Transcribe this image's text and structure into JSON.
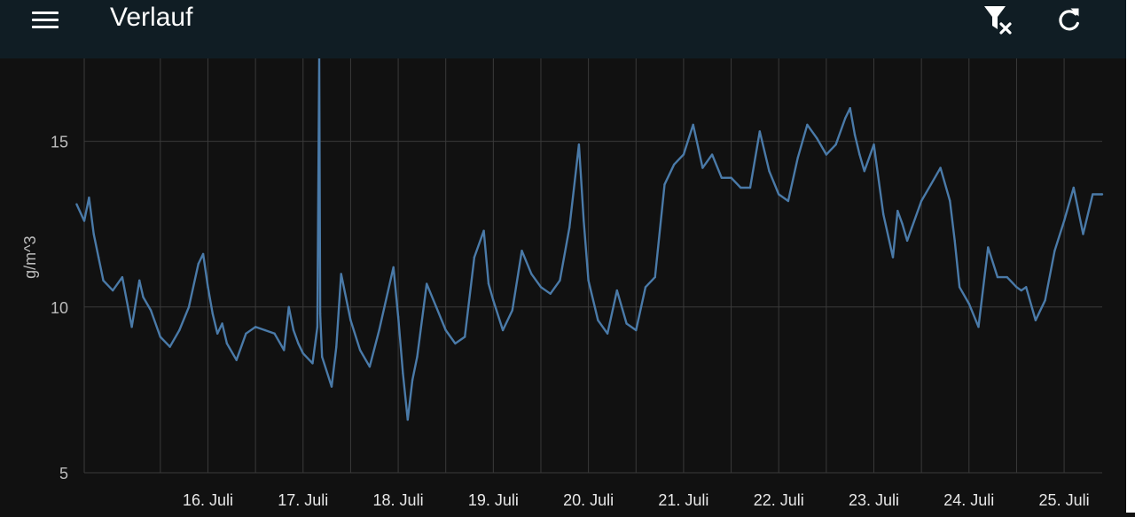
{
  "app_bar": {
    "title": "Verlauf",
    "menu_icon": "menu-icon",
    "actions": [
      {
        "icon": "filter-remove-icon"
      },
      {
        "icon": "refresh-icon"
      }
    ],
    "background": "#101d24"
  },
  "chart_data": {
    "type": "line",
    "ylabel": "g/m^3",
    "ylim": [
      5,
      17.5
    ],
    "yticks": [
      5,
      10,
      15
    ],
    "x_unit": "day",
    "x_tick_labels": [
      "16. Juli",
      "17. Juli",
      "18. Juli",
      "19. Juli",
      "20. Juli",
      "21. Juli",
      "22. Juli",
      "23. Juli",
      "24. Juli",
      "25. Juli"
    ],
    "xlim": [
      15.2,
      25.9
    ],
    "grid": true,
    "series": [
      {
        "color": "#4a7aa8",
        "x": [
          15.12,
          15.2,
          15.25,
          15.3,
          15.35,
          15.4,
          15.5,
          15.6,
          15.7,
          15.78,
          15.82,
          15.9,
          16.0,
          16.1,
          16.2,
          16.3,
          16.4,
          16.45,
          16.5,
          16.55,
          16.6,
          16.65,
          16.7,
          16.8,
          16.9,
          17.0,
          17.1,
          17.2,
          17.3,
          17.35,
          17.4,
          17.45,
          17.5,
          17.6,
          17.65,
          17.67,
          17.68,
          17.7,
          17.8,
          17.85,
          17.9,
          18.0,
          18.1,
          18.2,
          18.3,
          18.45,
          18.5,
          18.55,
          18.6,
          18.65,
          18.7,
          18.8,
          18.9,
          19.0,
          19.1,
          19.2,
          19.3,
          19.4,
          19.45,
          19.5,
          19.6,
          19.7,
          19.8,
          19.9,
          20.0,
          20.1,
          20.2,
          20.3,
          20.4,
          20.45,
          20.5,
          20.6,
          20.7,
          20.8,
          20.9,
          21.0,
          21.1,
          21.2,
          21.3,
          21.4,
          21.5,
          21.6,
          21.7,
          21.8,
          21.9,
          22.0,
          22.1,
          22.2,
          22.3,
          22.4,
          22.5,
          22.6,
          22.7,
          22.8,
          22.9,
          23.0,
          23.1,
          23.2,
          23.25,
          23.3,
          23.35,
          23.4,
          23.5,
          23.6,
          23.7,
          23.75,
          23.8,
          23.85,
          23.9,
          24.0,
          24.1,
          24.2,
          24.3,
          24.35,
          24.4,
          24.5,
          24.6,
          24.7,
          24.8,
          24.9,
          25.0,
          25.05,
          25.1,
          25.2,
          25.3,
          25.4,
          25.5,
          25.6,
          25.7,
          25.8,
          25.9
        ],
        "y": [
          13.1,
          12.6,
          13.3,
          12.2,
          11.5,
          10.8,
          10.5,
          10.9,
          9.4,
          10.8,
          10.3,
          9.9,
          9.1,
          8.8,
          9.3,
          10.0,
          11.3,
          11.6,
          10.6,
          9.8,
          9.2,
          9.5,
          8.9,
          8.4,
          9.2,
          9.4,
          9.3,
          9.2,
          8.7,
          10.0,
          9.3,
          8.9,
          8.6,
          8.3,
          9.4,
          17.5,
          9.8,
          8.5,
          7.6,
          8.8,
          11.0,
          9.6,
          8.7,
          8.2,
          9.3,
          11.2,
          9.7,
          8.0,
          6.6,
          7.8,
          8.5,
          10.7,
          10.0,
          9.3,
          8.9,
          9.1,
          11.5,
          12.3,
          10.7,
          10.2,
          9.3,
          9.9,
          11.7,
          11.0,
          10.6,
          10.4,
          10.8,
          12.4,
          14.9,
          12.6,
          10.8,
          9.6,
          9.2,
          10.5,
          9.5,
          9.3,
          10.6,
          10.9,
          13.7,
          14.3,
          14.6,
          15.5,
          14.2,
          14.6,
          13.9,
          13.9,
          13.6,
          13.6,
          15.3,
          14.1,
          13.4,
          13.2,
          14.5,
          15.5,
          15.1,
          14.6,
          14.9,
          15.7,
          16.0,
          15.2,
          14.6,
          14.1,
          14.9,
          12.8,
          11.5,
          12.9,
          12.5,
          12.0,
          12.4,
          13.2,
          13.7,
          14.2,
          13.2,
          12.0,
          10.6,
          10.1,
          9.4,
          11.8,
          10.9,
          10.9,
          10.6,
          10.5,
          10.6,
          9.6,
          10.2,
          11.7,
          12.6,
          13.6,
          12.2,
          13.4,
          13.4
        ]
      }
    ]
  }
}
